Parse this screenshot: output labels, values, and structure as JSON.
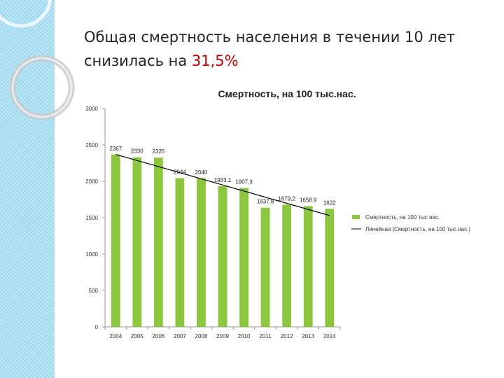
{
  "slide": {
    "title_line1": "Общая смертность населения в течении 10 лет",
    "title_line2": "снизилась на ",
    "highlight": "31,5%",
    "highlight_color": "#c00000"
  },
  "chart_data": {
    "type": "bar",
    "title": "Смертность, на 100 тыс.нас.",
    "categories": [
      "2004",
      "2005",
      "2006",
      "2007",
      "2008",
      "2009",
      "2010",
      "2011",
      "2012",
      "2013",
      "2014"
    ],
    "series": [
      {
        "name": "Смертность, на 100 тыс нас.",
        "values": [
          2367,
          2330,
          2325,
          2044,
          2040,
          1933.1,
          1907.3,
          1637.8,
          1679.2,
          1658.9,
          1622
        ],
        "labels": [
          "2367",
          "2330",
          "2325",
          "2044",
          "2040",
          "1933,1",
          "1907,3",
          "1637,8",
          "1679,2",
          "1658,9",
          "1622"
        ],
        "color": "#8cc63f"
      }
    ],
    "trendline": {
      "name": "Линейная (Смертность, на 100 тыс.нас.)",
      "start": 2370,
      "end": 1530,
      "color": "#000000"
    },
    "ylim": [
      0,
      3000
    ],
    "yticks": [
      0,
      500,
      1000,
      1500,
      2000,
      2500,
      3000
    ],
    "grid": false,
    "legend_position": "right"
  }
}
